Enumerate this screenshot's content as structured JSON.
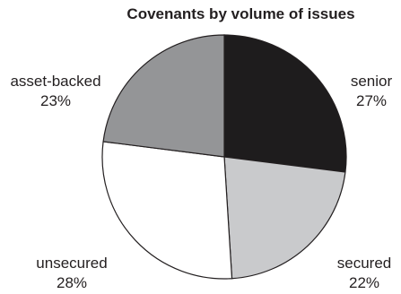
{
  "chart_data": {
    "type": "pie",
    "title": "Covenants by volume of issues",
    "slices": [
      {
        "label": "senior",
        "value": 27,
        "display": "27%",
        "color": "#1e1c1d"
      },
      {
        "label": "secured",
        "value": 22,
        "display": "22%",
        "color": "#c9cacc"
      },
      {
        "label": "unsecured",
        "value": 28,
        "display": "28%",
        "color": "#ffffff"
      },
      {
        "label": "asset-backed",
        "value": 23,
        "display": "23%",
        "color": "#949597"
      }
    ],
    "start": "12 o'clock",
    "direction": "clockwise",
    "legend": "none"
  }
}
